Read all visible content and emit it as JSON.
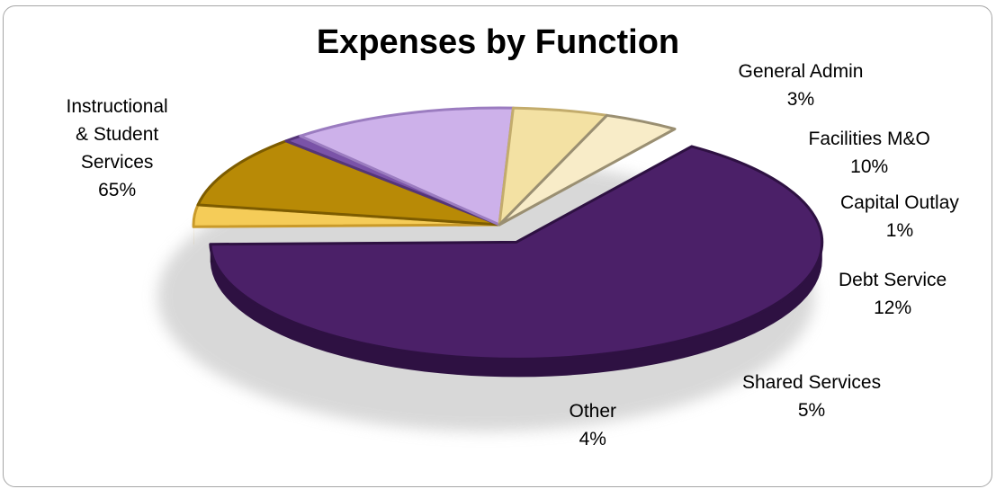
{
  "chart_data": {
    "type": "pie",
    "title": "Expenses by Function",
    "slices": [
      {
        "label": [
          "Instructional",
          "& Student",
          "Services"
        ],
        "value": 65,
        "value_label": "65%",
        "color": "#4b2068",
        "dark": "#2e1142"
      },
      {
        "label": [
          "General Admin"
        ],
        "value": 3,
        "value_label": "3%",
        "color": "#f5cc58",
        "dark": "#c99a2a"
      },
      {
        "label": [
          "Facilities M&O"
        ],
        "value": 10,
        "value_label": "10%",
        "color": "#b88a06",
        "dark": "#7d5c00"
      },
      {
        "label": [
          "Capital Outlay"
        ],
        "value": 1,
        "value_label": "1%",
        "color": "#7a53a8",
        "dark": "#553579"
      },
      {
        "label": [
          "Debt Service"
        ],
        "value": 12,
        "value_label": "12%",
        "color": "#cdb1ea",
        "dark": "#9b7cc0"
      },
      {
        "label": [
          "Shared Services"
        ],
        "value": 5,
        "value_label": "5%",
        "color": "#f3e1a3",
        "dark": "#c3ac6c"
      },
      {
        "label": [
          "Other"
        ],
        "value": 4,
        "value_label": "4%",
        "color": "#f8ecc8",
        "dark": "#9a8f72"
      }
    ]
  }
}
